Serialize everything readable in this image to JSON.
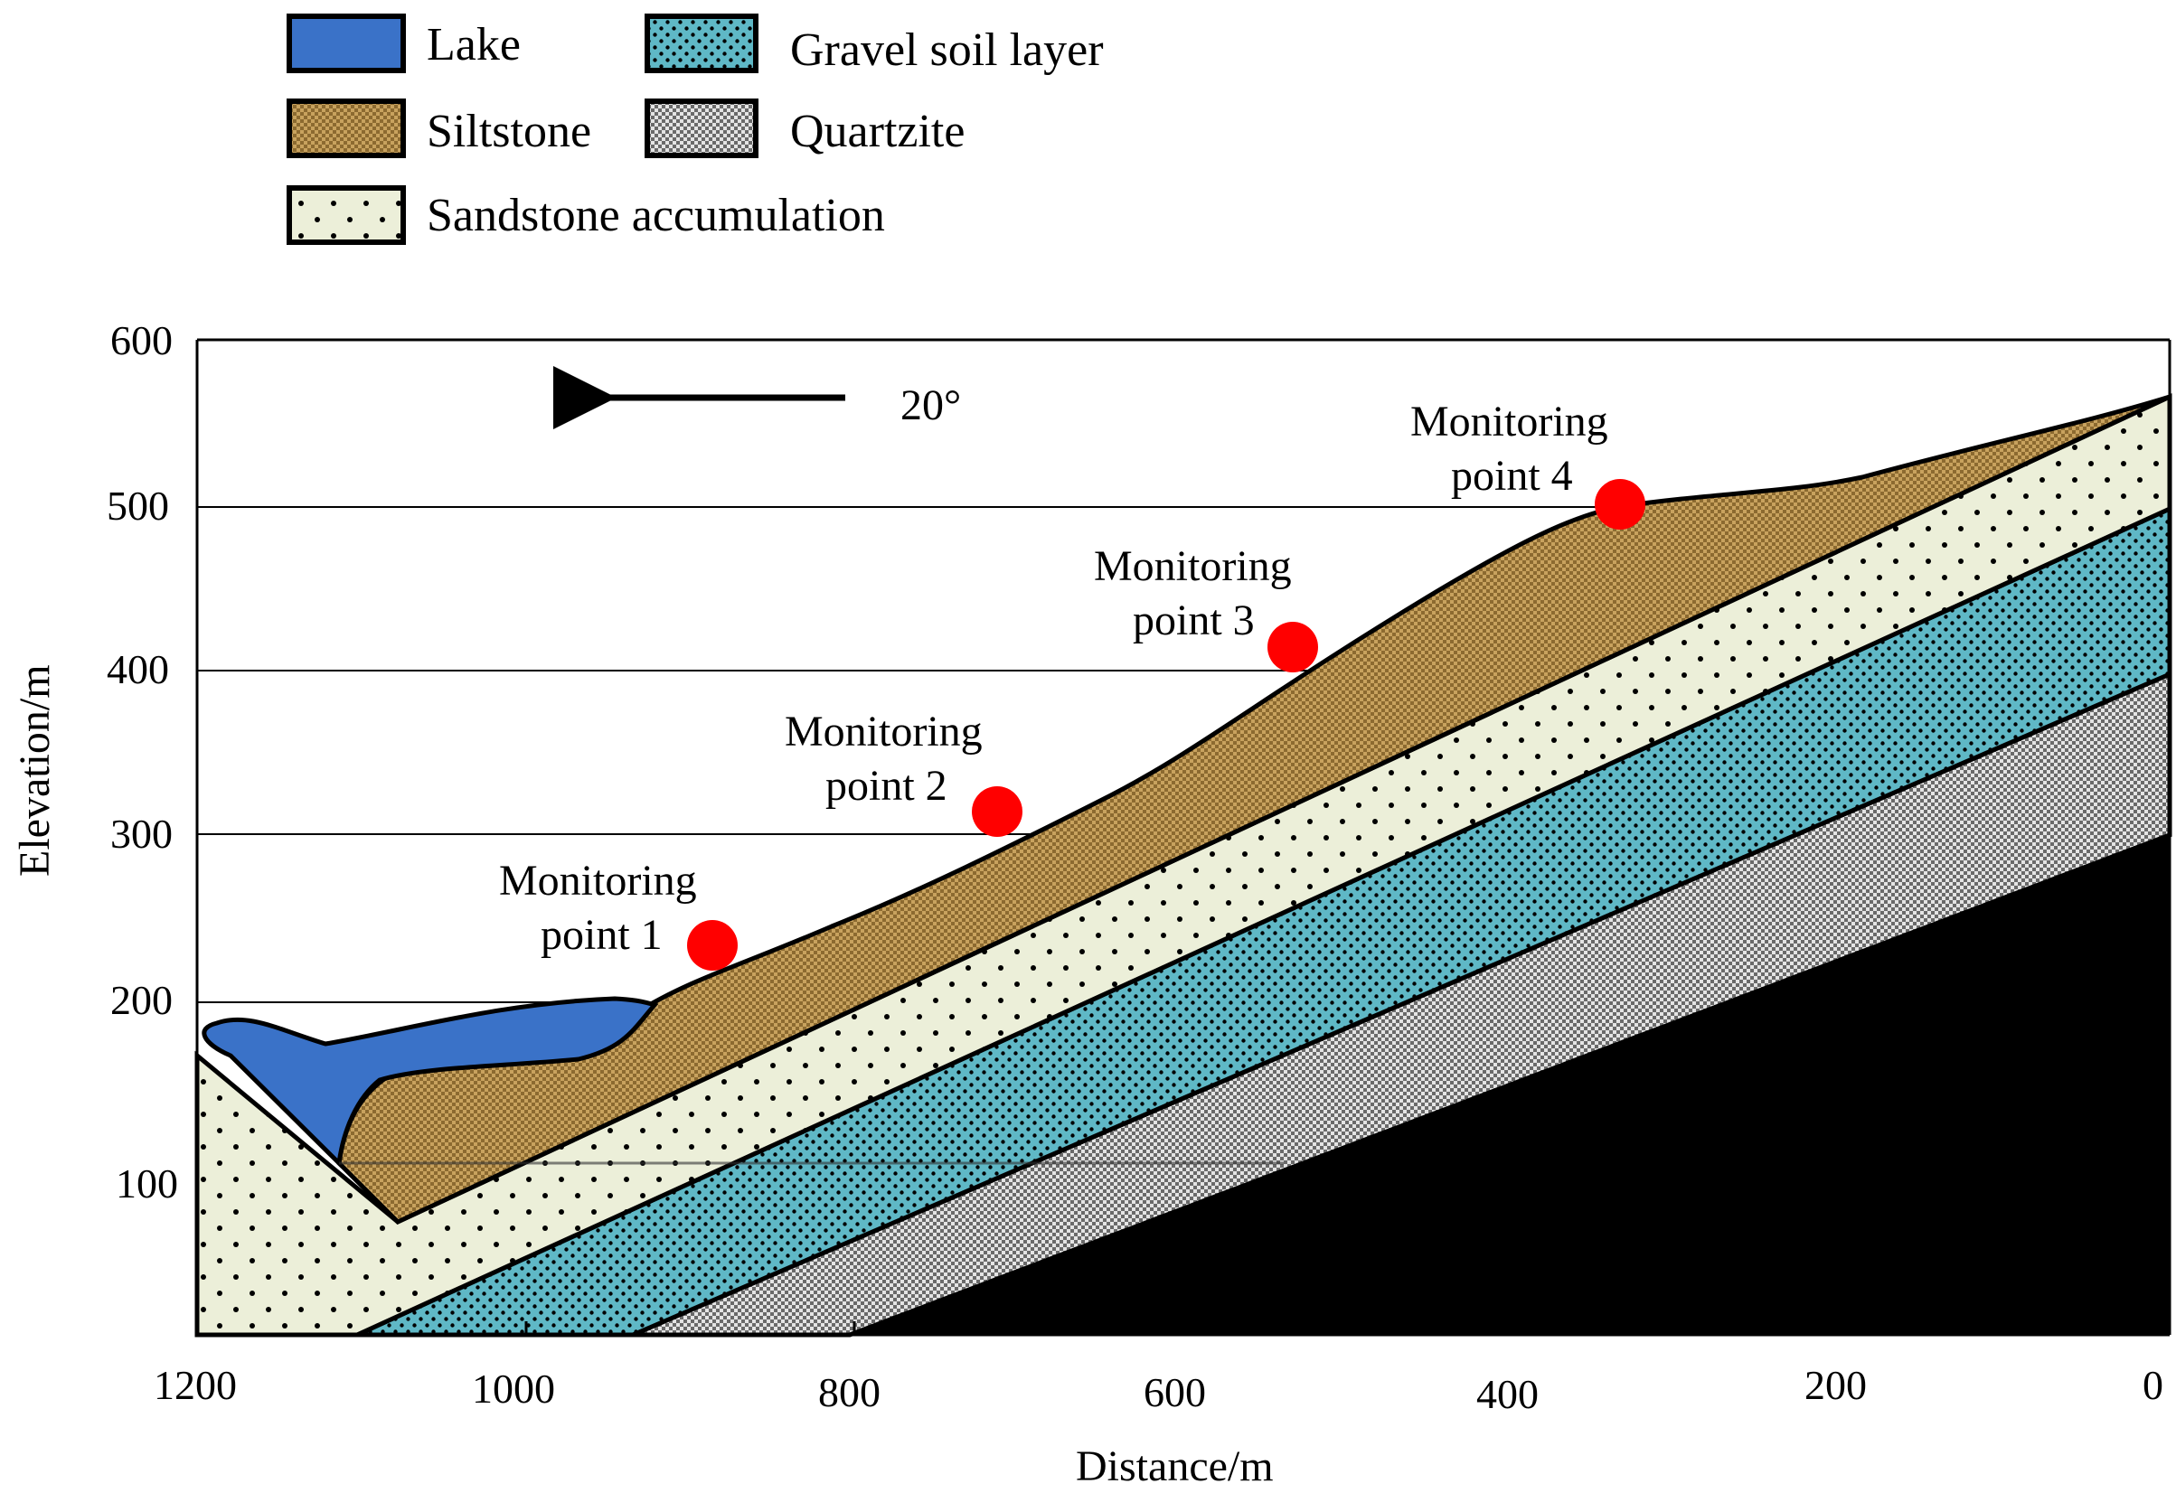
{
  "legend": {
    "items": [
      {
        "key": "lake",
        "label": "Lake"
      },
      {
        "key": "siltstone",
        "label": "Siltstone"
      },
      {
        "key": "sandstone",
        "label": "Sandstone accumulation"
      },
      {
        "key": "gravel",
        "label": "Gravel soil layer"
      },
      {
        "key": "quartzite",
        "label": "Quartzite"
      }
    ]
  },
  "axes": {
    "x_title": "Distance/m",
    "y_title": "Elevation/m",
    "x_ticks": [
      "1200",
      "1000",
      "800",
      "600",
      "400",
      "200",
      "0"
    ],
    "y_ticks": [
      "600",
      "500",
      "400",
      "300",
      "200",
      "100"
    ]
  },
  "direction": {
    "label": "20°"
  },
  "monitoring_points": [
    {
      "line1": "Monitoring",
      "line2": "point 1",
      "distance": 880,
      "elevation": 232
    },
    {
      "line1": "Monitoring",
      "line2": "point 2",
      "distance": 710,
      "elevation": 313
    },
    {
      "line1": "Monitoring",
      "line2": "point 3",
      "distance": 530,
      "elevation": 412
    },
    {
      "line1": "Monitoring",
      "line2": "point 4",
      "distance": 330,
      "elevation": 500
    }
  ],
  "colors": {
    "lake": "#3a72c8",
    "siltstone": "#c8a25e",
    "sandstone": "#ecefd9",
    "gravel": "#5fb8c6",
    "quartzite": "#c9c9c9",
    "bedrock": "#000000",
    "monitoring_point": "#ff0000"
  }
}
